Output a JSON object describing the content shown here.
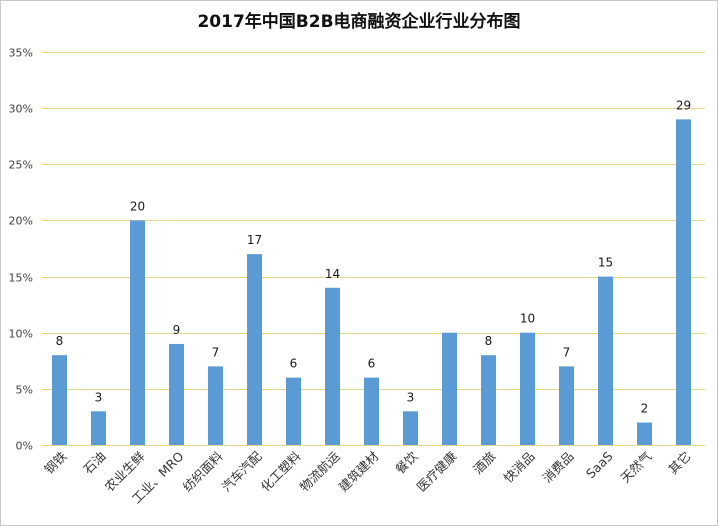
{
  "chart_data": {
    "type": "bar",
    "title": "2017年中国B2B电商融资企业行业分布图",
    "categories": [
      "钢铁",
      "石油",
      "农业生鲜",
      "工业、MRO",
      "纺织面料",
      "汽车汽配",
      "化工塑料",
      "物流航运",
      "建筑建材",
      "餐饮",
      "医疗健康",
      "酒旅",
      "快消品",
      "消费品",
      "SaaS",
      "天然气",
      "其它"
    ],
    "values": [
      8,
      3,
      20,
      9,
      7,
      17,
      6,
      14,
      6,
      3,
      10,
      8,
      10,
      7,
      15,
      2,
      29
    ],
    "data_labels": [
      "8",
      "3",
      "20",
      "9",
      "7",
      "17",
      "6",
      "14",
      "6",
      "3",
      null,
      "8",
      "10",
      "7",
      "15",
      "2",
      "29"
    ],
    "xlabel": "",
    "ylabel": "",
    "ylim": [
      0,
      35
    ],
    "yticks": [
      0,
      5,
      10,
      15,
      20,
      25,
      30,
      35
    ],
    "ytick_labels": [
      "0%",
      "5%",
      "10%",
      "15%",
      "20%",
      "25%",
      "30%",
      "35%"
    ],
    "grid": true,
    "colors": {
      "bar": "#5B9BD5",
      "grid": "#E6D68A",
      "border": "#C8C8C8"
    }
  }
}
